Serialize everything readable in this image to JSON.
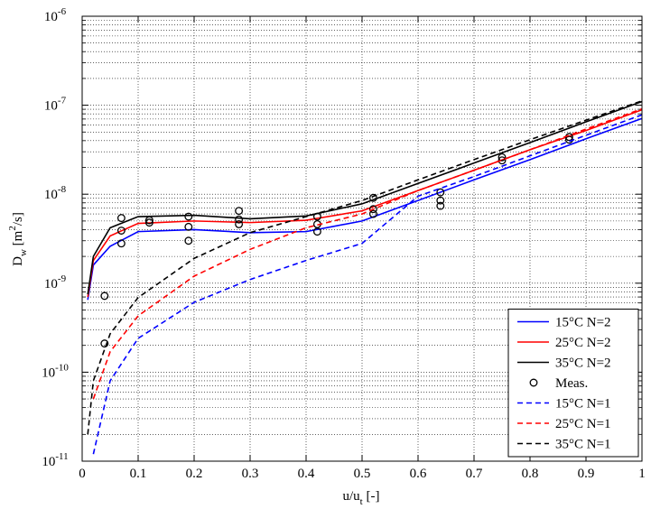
{
  "chart_data": {
    "type": "line",
    "xlabel": "u/u_{t} [-]",
    "ylabel": "D_{w} [m^{2}/s]",
    "x": [
      0.01,
      0.02,
      0.05,
      0.1,
      0.2,
      0.3,
      0.4,
      0.5,
      0.6,
      0.7,
      0.8,
      0.9,
      1
    ],
    "xlim": [
      0,
      1
    ],
    "xticks": [
      0,
      0.1,
      0.2,
      0.3,
      0.4,
      0.5,
      0.6,
      0.7,
      0.8,
      0.9,
      1
    ],
    "ylim": [
      1e-11,
      1e-06
    ],
    "log_y": true,
    "grid": true,
    "minor_grid": true,
    "yticks": [
      {
        "value": 1e-11,
        "label": "10^{-11}"
      },
      {
        "value": 1e-10,
        "label": "10^{-10}"
      },
      {
        "value": 1e-09,
        "label": "10^{-9}"
      },
      {
        "value": 1e-08,
        "label": "10^{-8}"
      },
      {
        "value": 1e-07,
        "label": "10^{-7}"
      },
      {
        "value": 1e-06,
        "label": "10^{-6}"
      }
    ],
    "legend": "bottom-right",
    "series": [
      {
        "name": "15°C N=2",
        "color": "#0000ff",
        "style": "solid",
        "values": [
          6.5e-10,
          1.6e-09,
          2.6e-09,
          3.8e-09,
          4e-09,
          3.7e-09,
          3.8e-09,
          5e-09,
          8.5e-09,
          1.45e-08,
          2.45e-08,
          4.2e-08,
          7.1e-08
        ]
      },
      {
        "name": "25°C N=2",
        "color": "#ff0000",
        "style": "solid",
        "values": [
          7e-10,
          1.8e-09,
          3.4e-09,
          4.7e-09,
          5e-09,
          4.8e-09,
          5.1e-09,
          6.5e-09,
          1.1e-08,
          1.86e-08,
          3.16e-08,
          5.2e-08,
          8.9e-08
        ]
      },
      {
        "name": "35°C N=2",
        "color": "#000000",
        "style": "solid",
        "values": [
          7.5e-10,
          2e-09,
          4.2e-09,
          5.6e-09,
          5.8e-09,
          5.3e-09,
          5.7e-09,
          7.8e-09,
          1.32e-08,
          2.24e-08,
          3.8e-08,
          6.5e-08,
          1.1e-07
        ]
      },
      {
        "name": "Meas.",
        "color": "#000000",
        "marker": "circle",
        "x": [
          0.04,
          0.04,
          0.07,
          0.07,
          0.07,
          0.12,
          0.12,
          0.19,
          0.19,
          0.19,
          0.28,
          0.28,
          0.28,
          0.42,
          0.42,
          0.42,
          0.52,
          0.52,
          0.52,
          0.64,
          0.64,
          0.64,
          0.75,
          0.75,
          0.87,
          0.87
        ],
        "values": [
          7.2e-10,
          2.1e-10,
          5.4e-09,
          3.9e-09,
          2.8e-09,
          5.1e-09,
          4.8e-09,
          5.6e-09,
          4.3e-09,
          3e-09,
          6.5e-09,
          5.2e-09,
          4.6e-09,
          5.6e-09,
          4.6e-09,
          3.8e-09,
          9.1e-09,
          6.8e-09,
          6e-09,
          1.05e-08,
          8.5e-09,
          7.4e-09,
          2.6e-08,
          2.4e-08,
          4.4e-08,
          4.1e-08
        ]
      },
      {
        "name": "15°C N=1",
        "color": "#0000ff",
        "style": "dashed",
        "values": [
          null,
          1.2e-11,
          8e-11,
          2.4e-10,
          6.1e-10,
          1.1e-09,
          1.8e-09,
          2.8e-09,
          9.5e-09,
          1.58e-08,
          2.7e-08,
          4.6e-08,
          7.8e-08
        ]
      },
      {
        "name": "25°C N=1",
        "color": "#ff0000",
        "style": "dashed",
        "values": [
          null,
          5e-11,
          1.7e-10,
          4.3e-10,
          1.2e-09,
          2.4e-09,
          4.2e-09,
          6e-09,
          1.1e-08,
          1.86e-08,
          3.16e-08,
          5.4e-08,
          9.1e-08
        ]
      },
      {
        "name": "35°C N=1",
        "color": "#000000",
        "style": "dashed",
        "values": [
          2e-11,
          8e-11,
          2.7e-10,
          6.9e-10,
          1.9e-09,
          3.7e-09,
          5.6e-09,
          8.5e-09,
          1.45e-08,
          2.45e-08,
          4.1e-08,
          6.8e-08,
          1.12e-07
        ]
      }
    ]
  }
}
